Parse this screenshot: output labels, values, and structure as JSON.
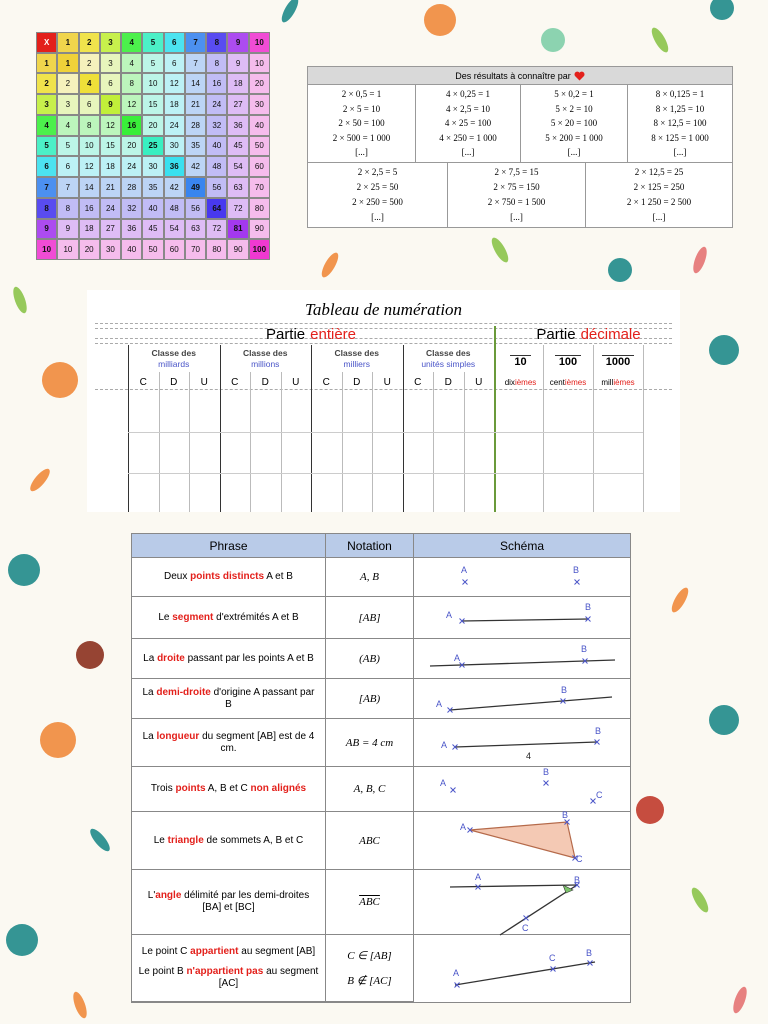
{
  "mult_table": {
    "header": [
      "X",
      1,
      2,
      3,
      4,
      5,
      6,
      7,
      8,
      9,
      10
    ],
    "rows": [
      [
        1,
        1,
        2,
        3,
        4,
        5,
        6,
        7,
        8,
        9,
        10
      ],
      [
        2,
        2,
        4,
        6,
        8,
        10,
        12,
        14,
        16,
        18,
        20
      ],
      [
        3,
        3,
        6,
        9,
        12,
        15,
        18,
        21,
        24,
        27,
        30
      ],
      [
        4,
        4,
        8,
        12,
        16,
        20,
        24,
        28,
        32,
        36,
        40
      ],
      [
        5,
        5,
        10,
        15,
        20,
        25,
        30,
        35,
        40,
        45,
        50
      ],
      [
        6,
        6,
        12,
        18,
        24,
        30,
        36,
        42,
        48,
        54,
        60
      ],
      [
        7,
        7,
        14,
        21,
        28,
        35,
        42,
        49,
        56,
        63,
        70
      ],
      [
        8,
        8,
        16,
        24,
        32,
        40,
        48,
        56,
        64,
        72,
        80
      ],
      [
        9,
        9,
        18,
        27,
        36,
        45,
        54,
        63,
        72,
        81,
        90
      ],
      [
        10,
        10,
        20,
        30,
        40,
        50,
        60,
        70,
        80,
        90,
        100
      ]
    ]
  },
  "results": {
    "title": "Des résultats à connaître par",
    "top": [
      [
        "2 × 0,5 = 1",
        "2 × 5 = 10",
        "2 × 50 = 100",
        "2 × 500 = 1 000",
        "[...]"
      ],
      [
        "4 × 0,25 = 1",
        "4 × 2,5 = 10",
        "4 × 25 = 100",
        "4 × 250 = 1 000",
        "[...]"
      ],
      [
        "5 × 0,2 = 1",
        "5 × 2 = 10",
        "5 × 20 = 100",
        "5 × 200 = 1 000",
        "[...]"
      ],
      [
        "8 × 0,125 = 1",
        "8 × 1,25 = 10",
        "8 × 12,5 = 100",
        "8 × 125 = 1 000",
        "[...]"
      ]
    ],
    "bottom": [
      [
        "2 × 2,5 = 5",
        "2 × 25 = 50",
        "2 × 250 = 500",
        "[...]"
      ],
      [
        "2 × 7,5 = 15",
        "2 × 75 = 150",
        "2 × 750 = 1 500",
        "[...]"
      ],
      [
        "2 × 12,5 = 25",
        "2 × 125 = 250",
        "2 × 1 250 = 2 500",
        "[...]"
      ]
    ]
  },
  "numeration": {
    "title": "Tableau de numération",
    "integer_part": [
      "Partie",
      "entière"
    ],
    "decimal_part": [
      "Partie",
      "décimale"
    ],
    "classes": [
      {
        "title": "Classe des",
        "name": "milliards",
        "digits": [
          "C",
          "D",
          "U"
        ]
      },
      {
        "title": "Classe des",
        "name": "millions",
        "digits": [
          "C",
          "D",
          "U"
        ]
      },
      {
        "title": "Classe des",
        "name": "milliers",
        "digits": [
          "C",
          "D",
          "U"
        ]
      },
      {
        "title": "Classe des",
        "name": "unités simples",
        "digits": [
          "C",
          "D",
          "U"
        ]
      }
    ],
    "decimals": [
      {
        "denominator": 10,
        "name": [
          "dix",
          "ièmes"
        ]
      },
      {
        "denominator": 100,
        "name": [
          "cent",
          "ièmes"
        ]
      },
      {
        "denominator": 1000,
        "name": [
          "mill",
          "ièmes"
        ]
      }
    ]
  },
  "geometry": {
    "headers": [
      "Phrase",
      "Notation",
      "Schéma"
    ],
    "rows": [
      {
        "phrases": [
          [
            "Deux ",
            {
              "text": "points distincts",
              "color": "#e3201b"
            },
            " A et B"
          ]
        ],
        "notations": [
          "A, B"
        ],
        "schema_labels": [
          "A",
          "B"
        ]
      },
      {
        "phrases": [
          [
            "Le ",
            {
              "text": "segment",
              "color": "#e3201b"
            },
            " d'extrémités A et B"
          ]
        ],
        "notations": [
          "[AB]"
        ],
        "schema_labels": [
          "A",
          "B"
        ]
      },
      {
        "phrases": [
          [
            "La ",
            {
              "text": "droite",
              "color": "#e3201b"
            },
            " passant par les points A et B"
          ]
        ],
        "notations": [
          "(AB)"
        ],
        "schema_labels": [
          "A",
          "B"
        ]
      },
      {
        "phrases": [
          [
            "La ",
            {
              "text": "demi-droite",
              "color": "#e3201b"
            },
            " d'origine A passant par B"
          ]
        ],
        "notations": [
          "[AB)"
        ],
        "schema_labels": [
          "A",
          "B"
        ]
      },
      {
        "phrases": [
          [
            "La ",
            {
              "text": "longueur",
              "color": "#e3201b"
            },
            " du segment [AB] est de 4 cm."
          ]
        ],
        "notations": [
          "AB = 4 cm"
        ],
        "schema_labels": [
          "A",
          "B",
          "4"
        ]
      },
      {
        "phrases": [
          [
            "Trois ",
            {
              "text": "points",
              "color": "#e3201b"
            },
            " A,  B et C ",
            {
              "text": "non alignés",
              "color": "#e3201b"
            }
          ]
        ],
        "notations": [
          "A, B, C"
        ],
        "schema_labels": [
          "A",
          "B",
          "C"
        ]
      },
      {
        "phrases": [
          [
            "Le ",
            {
              "text": "triangle",
              "color": "#e3201b"
            },
            " de sommets A, B et C"
          ]
        ],
        "notations": [
          "ABC"
        ],
        "schema_labels": [
          "A",
          "B",
          "C"
        ]
      },
      {
        "phrases": [
          [
            "L'",
            {
              "text": "angle",
              "color": "#e3201b"
            },
            " délimité par les demi-droites [BA] et [BC]"
          ]
        ],
        "notations": [
          "ABC"
        ],
        "schema_labels": [
          "A",
          "B",
          "C"
        ]
      },
      {
        "phrases": [
          [
            "Le point C ",
            {
              "text": "appartient",
              "color": "#e3201b"
            },
            " au segment [AB]"
          ],
          [
            "Le point B ",
            {
              "text": "n'appartient pas",
              "color": "#e3201b"
            },
            " au segment [AC]"
          ]
        ],
        "notations": [
          "C ∈ [AB]",
          "B ∉ [AC]"
        ],
        "schema_labels": [
          "A",
          "C",
          "B"
        ]
      }
    ]
  }
}
